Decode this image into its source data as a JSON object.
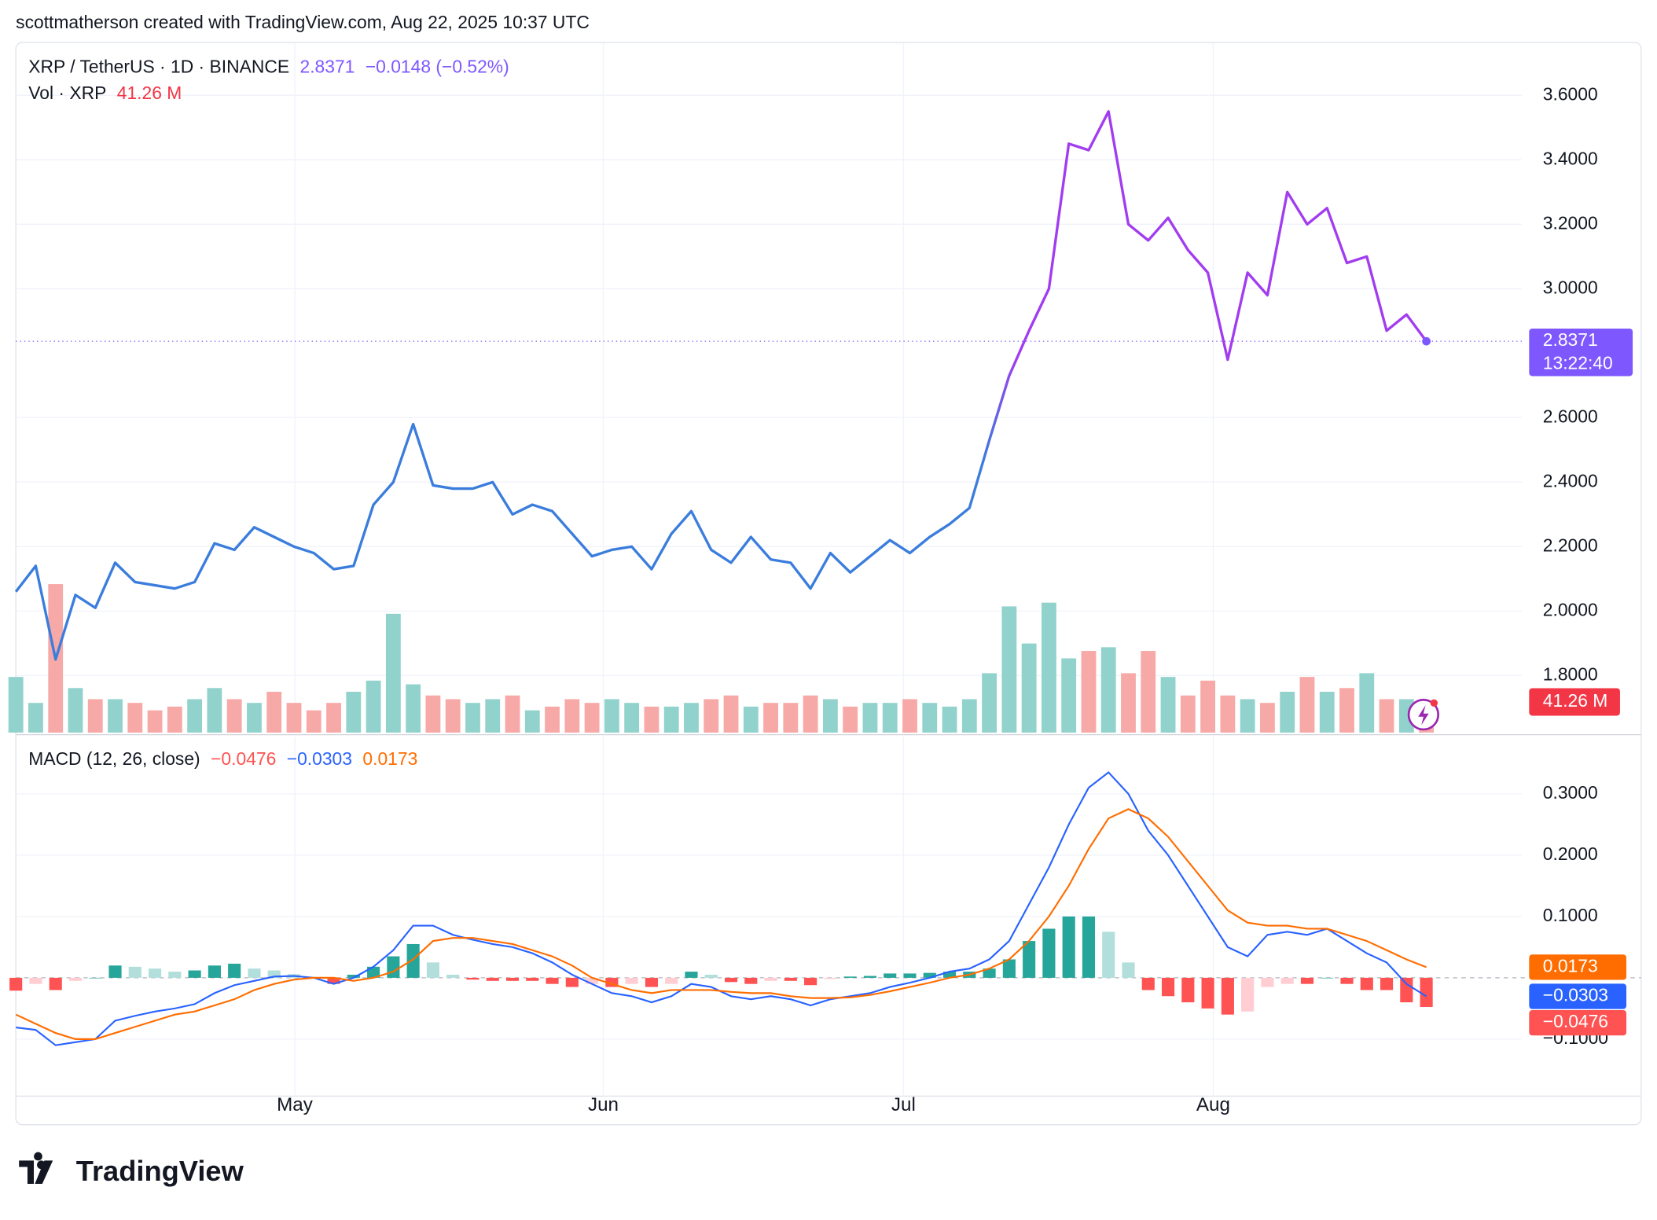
{
  "header": {
    "attribution": "scottmatherson created with TradingView.com, Aug 22, 2025 10:37 UTC",
    "logo": "TradingView"
  },
  "chart_data": [
    {
      "type": "line",
      "title": "XRP / TetherUS · 1D · BINANCE",
      "change_label": "−0.0148 (−0.52%)",
      "countdown": "13:22:40",
      "xlim": [
        0,
        75.8
      ],
      "xticks": [
        {
          "value": 14.04,
          "label": "May"
        },
        {
          "value": 29.57,
          "label": "Jun"
        },
        {
          "value": 44.68,
          "label": "Jul"
        },
        {
          "value": 60.27,
          "label": "Aug"
        }
      ],
      "ylim": [
        1.623,
        3.764
      ],
      "yticks": [
        {
          "value": 1.8,
          "label": "1.8000"
        },
        {
          "value": 2.0,
          "label": "2.0000"
        },
        {
          "value": 2.2,
          "label": "2.2000"
        },
        {
          "value": 2.4,
          "label": "2.4000"
        },
        {
          "value": 2.6,
          "label": "2.6000"
        },
        {
          "value": 3.0,
          "label": "3.0000"
        },
        {
          "value": 3.2,
          "label": "3.2000"
        },
        {
          "value": 3.4,
          "label": "3.4000"
        },
        {
          "value": 3.6,
          "label": "3.6000"
        }
      ],
      "grid": true,
      "series": [
        {
          "colors": [
            "#3b7ddd",
            "#a23cf0"
          ],
          "last_color": "#7e57ff",
          "values": [
            2.06,
            2.14,
            1.85,
            2.05,
            2.01,
            2.15,
            2.09,
            2.08,
            2.07,
            2.09,
            2.21,
            2.19,
            2.26,
            2.23,
            2.2,
            2.18,
            2.13,
            2.14,
            2.33,
            2.4,
            2.58,
            2.39,
            2.38,
            2.38,
            2.4,
            2.3,
            2.33,
            2.31,
            2.24,
            2.17,
            2.19,
            2.2,
            2.13,
            2.24,
            2.31,
            2.19,
            2.15,
            2.23,
            2.16,
            2.15,
            2.07,
            2.18,
            2.12,
            2.17,
            2.22,
            2.18,
            2.23,
            2.27,
            2.32,
            2.53,
            2.73,
            2.87,
            3.0,
            3.45,
            3.43,
            3.55,
            3.2,
            3.15,
            3.22,
            3.12,
            3.05,
            2.78,
            3.05,
            2.98,
            3.3,
            3.2,
            3.25,
            3.08,
            3.1,
            2.87,
            2.92,
            2.8371
          ]
        }
      ],
      "volume": {
        "name": "Vol · XRP",
        "ylim": [
          0,
          400
        ],
        "up_color": "#92d2cc",
        "down_color": "#f7a9a7",
        "last_color": "#f23645",
        "last_label": "41.26 M",
        "values": [
          75,
          40,
          200,
          60,
          45,
          45,
          40,
          30,
          35,
          45,
          60,
          45,
          40,
          55,
          40,
          30,
          40,
          55,
          70,
          160,
          65,
          50,
          45,
          40,
          45,
          50,
          30,
          35,
          45,
          40,
          45,
          40,
          35,
          35,
          40,
          45,
          50,
          35,
          40,
          40,
          50,
          45,
          35,
          40,
          40,
          45,
          40,
          35,
          45,
          80,
          170,
          120,
          175,
          100,
          110,
          115,
          80,
          110,
          75,
          50,
          70,
          50,
          45,
          40,
          55,
          75,
          55,
          60,
          80,
          45,
          45,
          41.26
        ]
      }
    },
    {
      "type": "macd",
      "title": "MACD (12, 26, close)",
      "xlim": [
        0,
        75.8
      ],
      "ylim": [
        -0.193,
        0.393
      ],
      "yticks": [
        {
          "value": -0.1,
          "label": "−0.1000"
        },
        {
          "value": 0.1,
          "label": "0.1000"
        },
        {
          "value": 0.2,
          "label": "0.2000"
        },
        {
          "value": 0.3,
          "label": "0.3000"
        }
      ],
      "grid": true,
      "series": [
        {
          "color": "#2962ff",
          "last_label": "−0.0303",
          "values": [
            -0.081,
            -0.085,
            -0.11,
            -0.105,
            -0.1,
            -0.07,
            -0.062,
            -0.055,
            -0.05,
            -0.043,
            -0.025,
            -0.012,
            -0.005,
            0.002,
            0.003,
            0.0,
            -0.01,
            0.0,
            0.018,
            0.045,
            0.085,
            0.085,
            0.07,
            0.062,
            0.055,
            0.05,
            0.04,
            0.025,
            0.005,
            -0.01,
            -0.025,
            -0.03,
            -0.04,
            -0.03,
            -0.01,
            -0.015,
            -0.03,
            -0.035,
            -0.03,
            -0.035,
            -0.045,
            -0.035,
            -0.03,
            -0.025,
            -0.015,
            -0.008,
            0.0,
            0.01,
            0.015,
            0.03,
            0.06,
            0.12,
            0.18,
            0.25,
            0.31,
            0.335,
            0.3,
            0.24,
            0.2,
            0.15,
            0.1,
            0.05,
            0.035,
            0.07,
            0.075,
            0.07,
            0.08,
            0.06,
            0.04,
            0.025,
            -0.01,
            -0.0303
          ]
        },
        {
          "color": "#ff6d00",
          "values": [
            -0.06,
            -0.075,
            -0.09,
            -0.1,
            -0.1,
            -0.09,
            -0.08,
            -0.07,
            -0.06,
            -0.055,
            -0.045,
            -0.035,
            -0.02,
            -0.01,
            -0.003,
            0.0,
            0.0,
            -0.005,
            0.0,
            0.01,
            0.03,
            0.06,
            0.065,
            0.065,
            0.06,
            0.055,
            0.045,
            0.035,
            0.02,
            0.0,
            -0.01,
            -0.02,
            -0.025,
            -0.02,
            -0.02,
            -0.02,
            -0.023,
            -0.025,
            -0.025,
            -0.03,
            -0.033,
            -0.033,
            -0.032,
            -0.028,
            -0.022,
            -0.015,
            -0.008,
            0.0,
            0.005,
            0.015,
            0.03,
            0.06,
            0.1,
            0.15,
            0.21,
            0.26,
            0.275,
            0.26,
            0.23,
            0.19,
            0.15,
            0.11,
            0.09,
            0.085,
            0.085,
            0.08,
            0.08,
            0.07,
            0.06,
            0.045,
            0.03,
            0.0173
          ]
        }
      ],
      "histogram": {
        "colors": [
          "#26a69a",
          "#b2dfdb",
          "#ff5252",
          "#ffcdd2"
        ],
        "last_label": "−0.0476",
        "values": [
          -0.021,
          -0.01,
          -0.02,
          -0.005,
          0.0,
          0.02,
          0.018,
          0.015,
          0.01,
          0.012,
          0.02,
          0.023,
          0.015,
          0.012,
          0.006,
          0.0,
          -0.01,
          0.005,
          0.018,
          0.035,
          0.055,
          0.025,
          0.005,
          -0.003,
          -0.005,
          -0.005,
          -0.005,
          -0.01,
          -0.015,
          -0.01,
          -0.015,
          -0.01,
          -0.015,
          -0.01,
          0.01,
          0.005,
          -0.007,
          -0.01,
          -0.005,
          -0.005,
          -0.012,
          -0.002,
          0.002,
          0.003,
          0.007,
          0.007,
          0.008,
          0.01,
          0.01,
          0.015,
          0.03,
          0.06,
          0.08,
          0.1,
          0.1,
          0.075,
          0.025,
          -0.02,
          -0.03,
          -0.04,
          -0.05,
          -0.06,
          -0.055,
          -0.015,
          -0.01,
          -0.01,
          0.0,
          -0.01,
          -0.02,
          -0.02,
          -0.04,
          -0.0476
        ]
      }
    }
  ]
}
